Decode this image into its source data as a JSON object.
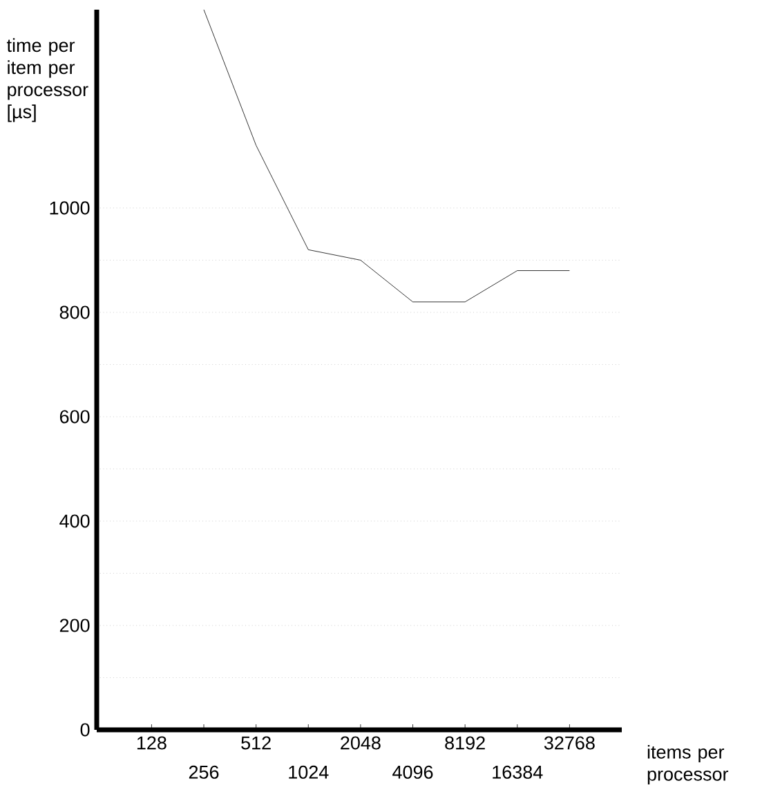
{
  "chart_data": {
    "type": "line",
    "xlabel": "items per processor",
    "ylabel": "time per item per processor [µs]",
    "categories": [
      "128",
      "256",
      "512",
      "1024",
      "2048",
      "4096",
      "8192",
      "16384",
      "32768"
    ],
    "values": [
      null,
      1380,
      1120,
      920,
      900,
      820,
      820,
      880,
      880
    ],
    "color": "#000000",
    "ylim": [
      0,
      1380
    ],
    "yticks": [
      0,
      {
        "value": 100,
        "label": null
      },
      200,
      {
        "value": 300,
        "label": null
      },
      400,
      {
        "value": 500,
        "label": null
      },
      600,
      {
        "value": 700,
        "label": null
      },
      800,
      {
        "value": 900,
        "label": null
      },
      1000
    ],
    "grid": "y",
    "marker": "none",
    "line_style": "solid"
  }
}
